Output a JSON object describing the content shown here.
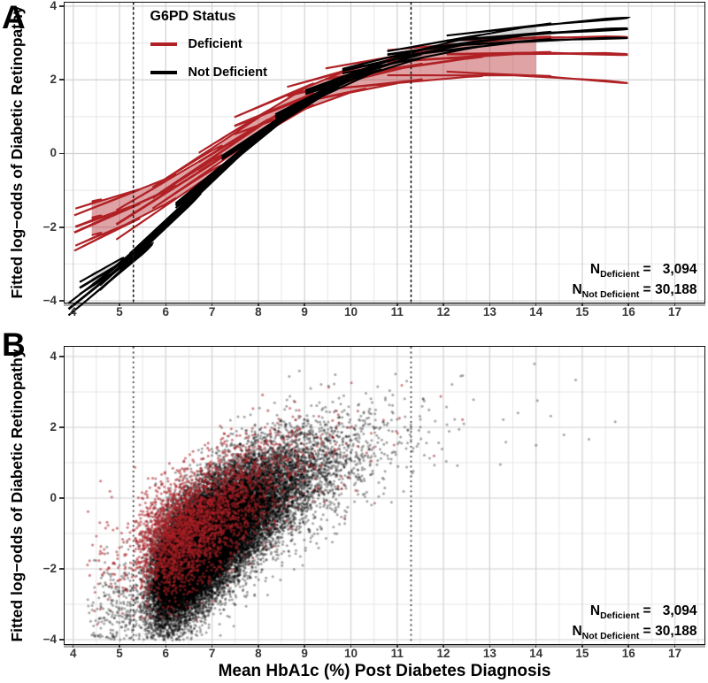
{
  "figure": {
    "panel_a_letter": "A",
    "panel_b_letter": "B",
    "y_axis_title": "Fitted log−odds of Diabetic Retinopathy",
    "x_axis_title": "Mean HbA1c (%) Post Diabetes Diagnosis",
    "legend": {
      "title": "G6PD Status",
      "items": [
        {
          "label": "Deficient",
          "color": "#B02125"
        },
        {
          "label": "Not Deficient",
          "color": "#000000"
        }
      ]
    },
    "annotation": {
      "rows": [
        {
          "prefix": "N",
          "sub": "Deficient",
          "eq": "=",
          "value": "3,094"
        },
        {
          "prefix": "N",
          "sub": "Not Deficient",
          "eq": "=",
          "value": "30,188"
        }
      ]
    }
  },
  "colors": {
    "grid_major": "#d2d2d2",
    "grid_minor": "#e7e7e7",
    "ref_line": "#1a1a1a",
    "panel_border": "#111111",
    "red_line": "#B02125",
    "red_fill": "rgba(178,36,40,0.42)",
    "black_line": "#000000",
    "black_fill": "rgba(0,0,0,0.16)"
  },
  "chart_data": [
    {
      "id": "A",
      "type": "line",
      "title": "",
      "xlabel": "",
      "ylabel": "Fitted log−odds of Diabetic Retinopathy",
      "xlim": [
        3.814,
        17.64
      ],
      "ylim": [
        -4.048,
        4.096
      ],
      "x_ticks": [
        4,
        5,
        6,
        7,
        8,
        9,
        10,
        11,
        12,
        13,
        14,
        15,
        16,
        17
      ],
      "x_minor": [
        4.5,
        5.5,
        6.5,
        7.5,
        8.5,
        9.5,
        10.5,
        11.5,
        12.5,
        13.5,
        14.5,
        15.5,
        16.5,
        17.5
      ],
      "y_ticks": {
        "values": [
          4,
          2,
          0,
          -2,
          -4
        ],
        "labels": [
          "4",
          "2",
          "0",
          "−2",
          "−4"
        ],
        "minor": [
          3,
          1,
          -1,
          -3
        ]
      },
      "reference_lines_x": [
        5.3,
        11.3
      ],
      "legend_position": "top-left-inside",
      "grid": true,
      "series": [
        {
          "name": "Deficient",
          "n_label": "3,094",
          "color": "#B02125",
          "fill": "rgba(178,36,40,0.42)",
          "points_x_mean_ciUp_ciDown": [
            [
              4.4,
              -1.75,
              0.45,
              0.47
            ],
            [
              5.3,
              -1.42,
              0.4,
              0.42
            ],
            [
              6.0,
              -1.02,
              0.33,
              0.35
            ],
            [
              7.0,
              -0.28,
              0.27,
              0.28
            ],
            [
              8.0,
              0.72,
              0.25,
              0.25
            ],
            [
              9.0,
              1.5,
              0.27,
              0.3
            ],
            [
              10.0,
              2.0,
              0.3,
              0.34
            ],
            [
              11.3,
              2.38,
              0.33,
              0.4
            ],
            [
              12.5,
              2.58,
              0.38,
              0.5
            ],
            [
              14.0,
              2.74,
              0.42,
              0.62
            ],
            [
              15.5,
              2.72,
              0.46,
              0.74
            ],
            [
              17.0,
              2.62,
              0.5,
              0.85
            ]
          ]
        },
        {
          "name": "Not Deficient",
          "n_label": "30,188",
          "color": "#000000",
          "fill": "rgba(0,0,0,0.16)",
          "points_x_mean_ciUp_ciDown": [
            [
              4.4,
              -3.45,
              0.15,
              0.16
            ],
            [
              5.0,
              -3.0,
              0.12,
              0.13
            ],
            [
              5.5,
              -2.62,
              0.1,
              0.11
            ],
            [
              6.5,
              -1.35,
              0.07,
              0.08
            ],
            [
              7.5,
              -0.12,
              0.06,
              0.06
            ],
            [
              8.5,
              0.92,
              0.06,
              0.06
            ],
            [
              9.5,
              1.72,
              0.07,
              0.07
            ],
            [
              10.5,
              2.3,
              0.09,
              0.09
            ],
            [
              11.3,
              2.62,
              0.11,
              0.11
            ],
            [
              12.5,
              2.98,
              0.15,
              0.14
            ],
            [
              14.0,
              3.26,
              0.22,
              0.18
            ],
            [
              15.5,
              3.38,
              0.28,
              0.24
            ],
            [
              17.0,
              3.41,
              0.33,
              0.28
            ]
          ]
        }
      ]
    },
    {
      "id": "B",
      "type": "scatter",
      "title": "",
      "xlabel": "Mean HbA1c (%) Post Diabetes Diagnosis",
      "ylabel": "Fitted log−odds of Diabetic Retinopathy",
      "xlim": [
        3.814,
        17.64
      ],
      "ylim": [
        -4.125,
        4.275
      ],
      "x_ticks": [
        4,
        5,
        6,
        7,
        8,
        9,
        10,
        11,
        12,
        13,
        14,
        15,
        16,
        17
      ],
      "x_minor": [
        4.5,
        5.5,
        6.5,
        7.5,
        8.5,
        9.5,
        10.5,
        11.5,
        12.5,
        13.5,
        14.5,
        15.5,
        16.5,
        17.5
      ],
      "y_ticks": {
        "values": [
          4,
          2,
          0,
          -2,
          -4
        ],
        "labels": [
          "4",
          "2",
          "0",
          "−2",
          "−4"
        ],
        "minor": [
          3,
          1,
          -1,
          -3
        ]
      },
      "reference_lines_x": [
        5.3,
        11.3
      ],
      "grid": true,
      "scatter_model": {
        "seed": 123,
        "point_radius": 1.5,
        "series": [
          {
            "name": "Deficient",
            "n": 3094,
            "color": "rgba(170,32,38,0.55)",
            "radius": 1.55,
            "x_base": 4.55,
            "x_lnmu": 0.72,
            "x_lnsd": 0.4,
            "x_outlier_frac": 0.03,
            "x_outlier_mu": 5.0,
            "x_outlier_sd": 0.4,
            "y_scale": 0.88,
            "y_off": -0.25,
            "y_sd": 0.8,
            "mean_curve": "Deficient"
          },
          {
            "name": "Not Deficient",
            "n": 30188,
            "color": "rgba(0,0,0,0.35)",
            "radius": 1.5,
            "x_base": 5.0,
            "x_lnmu": 0.62,
            "x_lnsd": 0.42,
            "x_outlier_frac": 0.01,
            "x_outlier_mu": 5.1,
            "x_outlier_sd": 0.35,
            "y_scale": 0.88,
            "y_off": -0.5,
            "y_sd": 0.78,
            "mean_curve": "Not Deficient"
          }
        ]
      }
    }
  ]
}
